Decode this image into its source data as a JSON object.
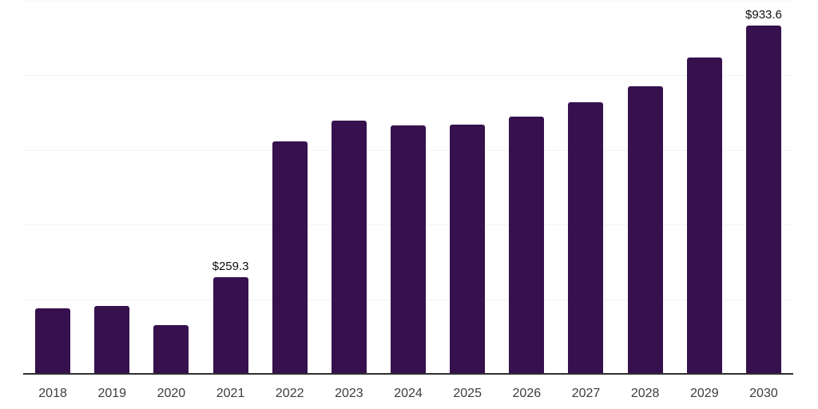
{
  "chart_data": {
    "type": "bar",
    "title": "",
    "xlabel": "",
    "ylabel": "",
    "categories": [
      "2018",
      "2019",
      "2020",
      "2021",
      "2022",
      "2023",
      "2024",
      "2025",
      "2026",
      "2027",
      "2028",
      "2029",
      "2030"
    ],
    "values": [
      176,
      182,
      131,
      259.3,
      623,
      679,
      666,
      668,
      690,
      729,
      771,
      848,
      933.6
    ],
    "data_labels": {
      "2021": "$259.3",
      "2030": "$933.6"
    },
    "ylim": [
      0,
      1000
    ],
    "grid_step": 200,
    "grid_on": true,
    "legend_position": "none",
    "colors": {
      "bar": "#36114d",
      "gridline": "#f3f3f3",
      "axis_line": "#2f2f2f",
      "tick_label": "#3d3d3d",
      "data_label": "#0f0f0f",
      "background": "#ffffff"
    }
  }
}
